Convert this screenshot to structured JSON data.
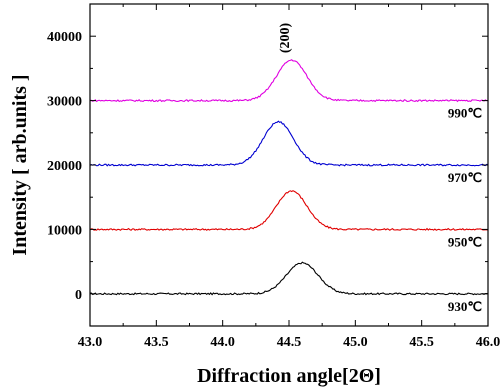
{
  "chart_data": {
    "type": "line",
    "title": "",
    "xlabel": "Diffraction angle[2Θ]",
    "ylabel": "Intensity [ arb.units ]",
    "xlim": [
      43.0,
      46.0
    ],
    "ylim": [
      -5000,
      45000
    ],
    "x_ticks": [
      "43.0",
      "43.5",
      "44.0",
      "44.5",
      "45.0",
      "45.5",
      "46.0"
    ],
    "y_ticks": [
      "0",
      "10000",
      "20000",
      "30000",
      "40000"
    ],
    "grid": false,
    "annotations": [
      {
        "text": "(200)",
        "x": 44.5,
        "y": 37000,
        "rotation": -90
      }
    ],
    "series": [
      {
        "name": "930℃",
        "color": "#000000",
        "baseline": 0,
        "peak_x": 44.6,
        "peak_height": 4800,
        "width": 0.28
      },
      {
        "name": "950℃",
        "color": "#e00000",
        "baseline": 10000,
        "peak_x": 44.52,
        "peak_height": 6000,
        "width": 0.27
      },
      {
        "name": "970℃",
        "color": "#0000d0",
        "baseline": 20000,
        "peak_x": 44.42,
        "peak_height": 6700,
        "width": 0.27
      },
      {
        "name": "990℃",
        "color": "#e000e0",
        "baseline": 30000,
        "peak_x": 44.52,
        "peak_height": 6300,
        "width": 0.27
      }
    ]
  }
}
